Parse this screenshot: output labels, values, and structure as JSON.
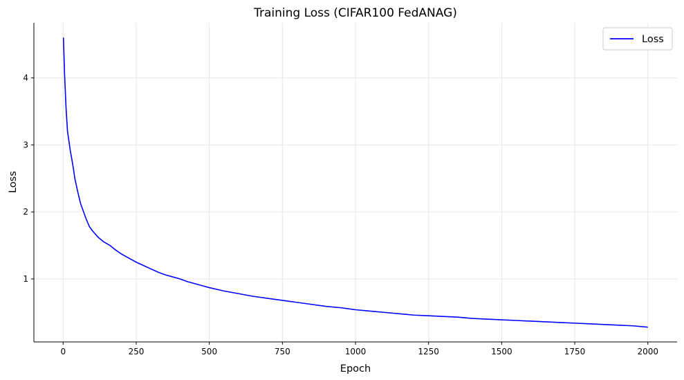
{
  "chart_data": {
    "type": "line",
    "title": "Training Loss (CIFAR100 FedANAG)",
    "xlabel": "Epoch",
    "ylabel": "Loss",
    "xlim": [
      -100,
      2100
    ],
    "ylim": [
      0.06,
      4.82
    ],
    "x_ticks": [
      0,
      250,
      500,
      750,
      1000,
      1250,
      1500,
      1750,
      2000
    ],
    "x_tick_labels": [
      "0",
      "250",
      "500",
      "750",
      "1000",
      "1250",
      "1500",
      "1750",
      "2000"
    ],
    "y_ticks": [
      1,
      2,
      3,
      4
    ],
    "y_tick_labels": [
      "1",
      "2",
      "3",
      "4"
    ],
    "grid": true,
    "legend": "top-right",
    "series": [
      {
        "name": "Loss",
        "color": "#0000ff",
        "x": [
          1,
          5,
          10,
          15,
          20,
          25,
          30,
          35,
          40,
          45,
          50,
          60,
          70,
          80,
          90,
          100,
          120,
          140,
          160,
          180,
          200,
          225,
          250,
          275,
          300,
          325,
          350,
          375,
          400,
          425,
          450,
          475,
          500,
          550,
          600,
          650,
          700,
          750,
          800,
          850,
          900,
          950,
          1000,
          1050,
          1100,
          1150,
          1200,
          1250,
          1300,
          1350,
          1400,
          1450,
          1500,
          1550,
          1600,
          1650,
          1700,
          1750,
          1800,
          1850,
          1900,
          1950,
          2000
        ],
        "y": [
          4.6,
          4.05,
          3.55,
          3.2,
          3.05,
          2.9,
          2.78,
          2.65,
          2.5,
          2.4,
          2.3,
          2.12,
          2.0,
          1.88,
          1.78,
          1.72,
          1.62,
          1.55,
          1.5,
          1.43,
          1.37,
          1.31,
          1.25,
          1.2,
          1.15,
          1.1,
          1.06,
          1.03,
          1.0,
          0.96,
          0.93,
          0.9,
          0.87,
          0.82,
          0.78,
          0.74,
          0.71,
          0.68,
          0.65,
          0.62,
          0.59,
          0.57,
          0.54,
          0.52,
          0.5,
          0.48,
          0.46,
          0.45,
          0.44,
          0.43,
          0.41,
          0.4,
          0.39,
          0.38,
          0.37,
          0.36,
          0.35,
          0.34,
          0.33,
          0.32,
          0.31,
          0.3,
          0.28
        ]
      }
    ]
  }
}
